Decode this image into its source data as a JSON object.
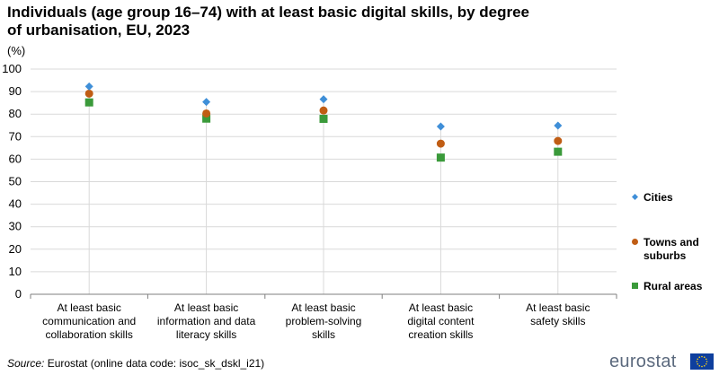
{
  "title": "Individuals (age group 16–74) with at least basic digital skills, by degree of urbanisation, EU, 2023",
  "unit_label": "(%)",
  "source": {
    "label": "Source:",
    "text": "Eurostat (online data code: isoc_sk_dskl_i21)"
  },
  "logo": {
    "text": "eurostat",
    "flag": "eu-flag-icon"
  },
  "colors": {
    "cities": "#3f8fd8",
    "towns": "#c05d14",
    "rural": "#3a9a3a",
    "grid": "#d9d9d9",
    "axis": "#7f7f7f"
  },
  "chart_data": {
    "type": "scatter",
    "categories": [
      [
        "At least basic",
        "communication and",
        "collaboration skills"
      ],
      [
        "At least basic",
        "information and data",
        "literacy skills"
      ],
      [
        "At least basic",
        "problem-solving",
        "skills"
      ],
      [
        "At least basic",
        "digital content",
        "creation skills"
      ],
      [
        "At least basic",
        "safety skills"
      ]
    ],
    "series": [
      {
        "name": "Cities",
        "marker": "diamond",
        "color": "#3f8fd8",
        "values": [
          92.3,
          85.4,
          86.6,
          74.5,
          74.9
        ]
      },
      {
        "name": "Towns and suburbs",
        "marker": "circle",
        "color": "#c05d14",
        "values": [
          89.1,
          80.3,
          81.6,
          66.9,
          68.1
        ]
      },
      {
        "name": "Rural areas",
        "marker": "square",
        "color": "#3a9a3a",
        "values": [
          85.2,
          78.0,
          77.9,
          60.7,
          63.3
        ]
      }
    ],
    "ylim": [
      0,
      100
    ],
    "yticks": [
      "0",
      "10",
      "20",
      "30",
      "40",
      "50",
      "60",
      "70",
      "80",
      "90",
      "100"
    ],
    "grid": true,
    "legend_position": "right"
  }
}
